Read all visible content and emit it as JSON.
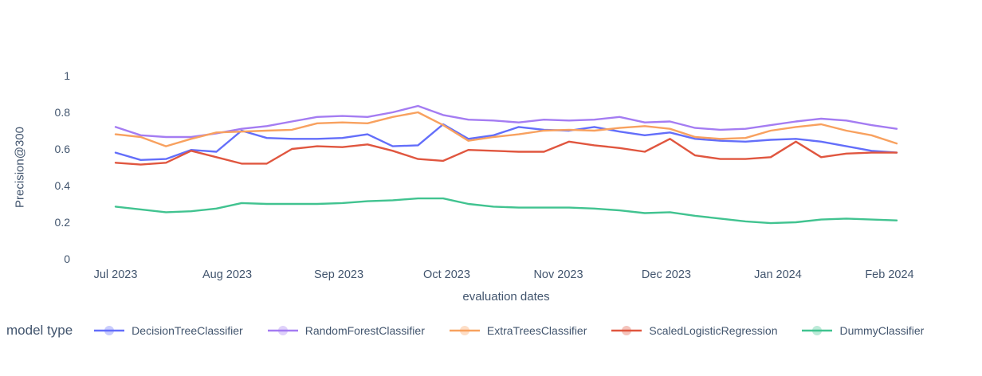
{
  "chart_data": {
    "type": "line",
    "title": "",
    "xlabel": "evaluation dates",
    "ylabel": "Precision@300",
    "ylim": [
      0,
      1
    ],
    "grid": false,
    "legend_title": "model type",
    "legend_position": "bottom",
    "yticks": [
      {
        "value": 0,
        "label": "0"
      },
      {
        "value": 0.2,
        "label": "0.2"
      },
      {
        "value": 0.4,
        "label": "0.4"
      },
      {
        "value": 0.6,
        "label": "0.6"
      },
      {
        "value": 0.8,
        "label": "0.8"
      },
      {
        "value": 1,
        "label": "1"
      }
    ],
    "xticks": [
      {
        "day": 0,
        "label": "Jul 2023"
      },
      {
        "day": 31,
        "label": "Aug 2023"
      },
      {
        "day": 62,
        "label": "Sep 2023"
      },
      {
        "day": 92,
        "label": "Oct 2023"
      },
      {
        "day": 123,
        "label": "Nov 2023"
      },
      {
        "day": 153,
        "label": "Dec 2023"
      },
      {
        "day": 184,
        "label": "Jan 2024"
      },
      {
        "day": 215,
        "label": "Feb 2024"
      }
    ],
    "x_days": [
      0,
      7,
      14,
      21,
      28,
      35,
      42,
      49,
      56,
      63,
      70,
      77,
      84,
      91,
      98,
      105,
      112,
      119,
      126,
      133,
      140,
      147,
      154,
      161,
      168,
      175,
      182,
      189,
      196,
      203,
      210,
      217
    ],
    "series": [
      {
        "name": "DecisionTreeClassifier",
        "color": "#636efa",
        "values": [
          0.58,
          0.54,
          0.545,
          0.595,
          0.585,
          0.7,
          0.66,
          0.655,
          0.655,
          0.66,
          0.68,
          0.615,
          0.62,
          0.735,
          0.655,
          0.675,
          0.72,
          0.705,
          0.7,
          0.72,
          0.695,
          0.675,
          0.69,
          0.655,
          0.645,
          0.64,
          0.65,
          0.655,
          0.64,
          0.615,
          0.59,
          0.58
        ]
      },
      {
        "name": "RandomForestClassifier",
        "color": "#a47cf2",
        "values": [
          0.72,
          0.675,
          0.665,
          0.665,
          0.685,
          0.71,
          0.725,
          0.75,
          0.775,
          0.78,
          0.775,
          0.8,
          0.835,
          0.785,
          0.76,
          0.755,
          0.745,
          0.76,
          0.755,
          0.76,
          0.775,
          0.745,
          0.75,
          0.715,
          0.705,
          0.71,
          0.73,
          0.75,
          0.765,
          0.755,
          0.73,
          0.71
        ]
      },
      {
        "name": "ExtraTreesClassifier",
        "color": "#f8a15f",
        "values": [
          0.68,
          0.665,
          0.615,
          0.655,
          0.69,
          0.695,
          0.7,
          0.705,
          0.74,
          0.745,
          0.74,
          0.775,
          0.8,
          0.73,
          0.645,
          0.665,
          0.68,
          0.7,
          0.705,
          0.7,
          0.715,
          0.725,
          0.71,
          0.665,
          0.655,
          0.66,
          0.7,
          0.72,
          0.735,
          0.7,
          0.675,
          0.63
        ]
      },
      {
        "name": "ScaledLogisticRegression",
        "color": "#e0563f",
        "values": [
          0.525,
          0.515,
          0.525,
          0.59,
          0.555,
          0.52,
          0.52,
          0.6,
          0.615,
          0.61,
          0.625,
          0.59,
          0.545,
          0.535,
          0.595,
          0.59,
          0.585,
          0.585,
          0.64,
          0.62,
          0.605,
          0.585,
          0.655,
          0.565,
          0.545,
          0.545,
          0.555,
          0.64,
          0.555,
          0.575,
          0.58,
          0.58
        ]
      },
      {
        "name": "DummyClassifier",
        "color": "#41c390",
        "values": [
          0.285,
          0.27,
          0.255,
          0.26,
          0.275,
          0.305,
          0.3,
          0.3,
          0.3,
          0.305,
          0.315,
          0.32,
          0.33,
          0.33,
          0.3,
          0.285,
          0.28,
          0.28,
          0.28,
          0.275,
          0.265,
          0.25,
          0.255,
          0.235,
          0.22,
          0.205,
          0.195,
          0.2,
          0.215,
          0.22,
          0.215,
          0.21
        ]
      }
    ]
  },
  "colors": {
    "background": "#ffffff",
    "text": "#42556e"
  }
}
